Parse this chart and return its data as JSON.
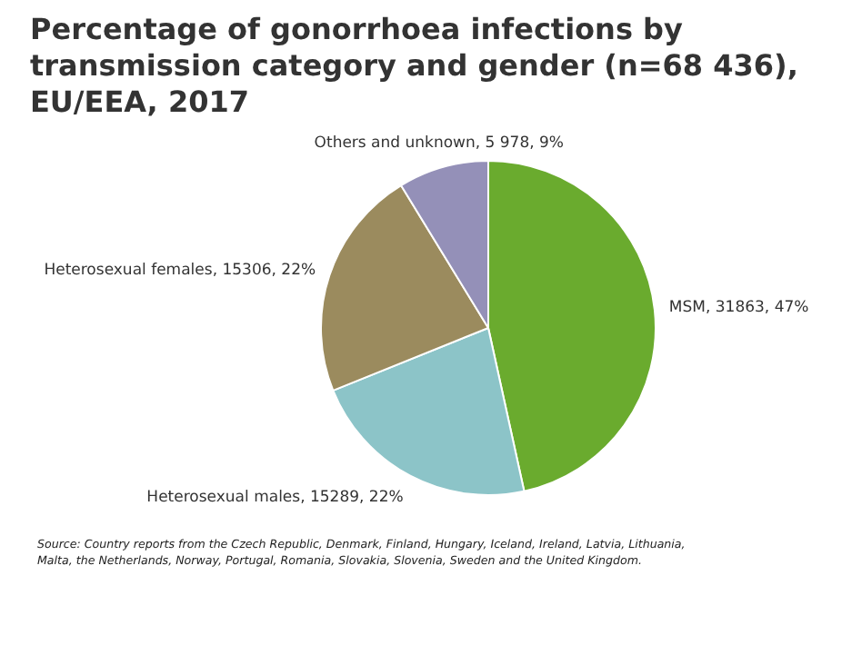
{
  "chart_data": {
    "type": "pie",
    "title": "Percentage of gonorrhoea infections by transmission category and gender (n=68 436), EU/EEA, 2017",
    "categories": [
      "MSM",
      "Heterosexual males",
      "Heterosexual females",
      "Others and unknown"
    ],
    "values": [
      31863,
      15289,
      15306,
      5978
    ],
    "value_labels": [
      "31863, 47%",
      "15289, 22%",
      "15306, 22%",
      "5 978, 9%"
    ],
    "colors": [
      "#6aab2e",
      "#8cc4c8",
      "#9b8b5e",
      "#9490b8"
    ],
    "legend": false,
    "annotations": [
      "Source: Country reports from the Czech Republic, Denmark, Finland, Hungary, Iceland, Ireland, Latvia, Lithuania, Malta, the Netherlands, Norway, Portugal, Romania, Slovakia, Slovenia, Sweden and the United Kingdom."
    ]
  }
}
